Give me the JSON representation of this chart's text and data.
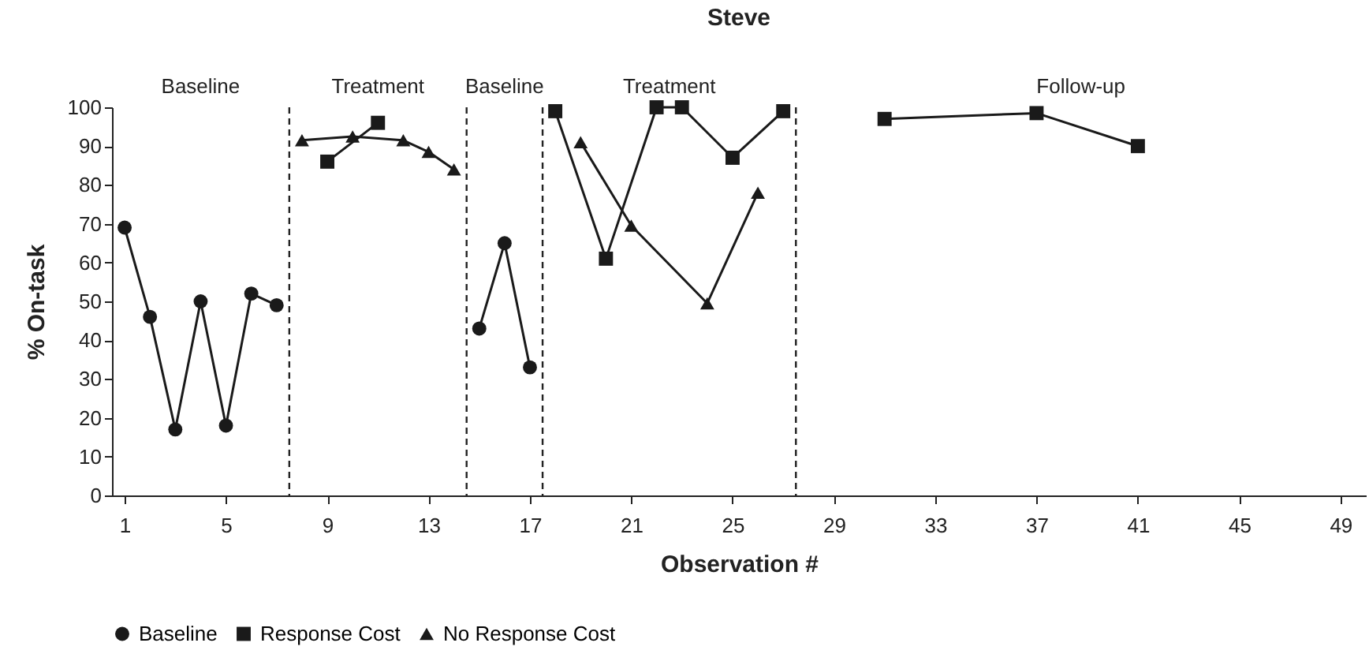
{
  "chart_data": {
    "type": "line",
    "title": "Steve",
    "xlabel": "Observation #",
    "ylabel": "% On-task",
    "xlim": [
      0.5,
      50
    ],
    "xticks": [
      1,
      5,
      9,
      13,
      17,
      21,
      25,
      29,
      33,
      37,
      41,
      45,
      49
    ],
    "ylim": [
      0,
      100
    ],
    "yticks": [
      0,
      10,
      20,
      30,
      40,
      50,
      60,
      70,
      80,
      90,
      100
    ],
    "grid": false,
    "legend": "bottom",
    "line_style": "solid",
    "series": [
      {
        "name": "Baseline",
        "color": "#1a1a1a",
        "marker": "circle",
        "x": [
          1,
          2,
          3,
          4,
          5,
          6,
          7,
          11,
          15,
          16,
          17
        ],
        "values": [
          69,
          46,
          17,
          50,
          18,
          52,
          49,
          null,
          43,
          65,
          33
        ]
      },
      {
        "name": "Response Cost",
        "color": "#1a1a1a",
        "marker": "square",
        "x": [
          9,
          11,
          14,
          18,
          20,
          22,
          23,
          25,
          27,
          29,
          31,
          37,
          41
        ],
        "values": [
          86,
          96,
          null,
          99,
          61,
          100,
          100,
          87,
          99,
          null,
          97,
          98.5,
          90
        ]
      },
      {
        "name": "No Response Cost",
        "color": "#1a1a1a",
        "marker": "triangle",
        "x": [
          8,
          10,
          12,
          13,
          14,
          16,
          19,
          21,
          24,
          26
        ],
        "values": [
          91.5,
          92.5,
          91.5,
          88.5,
          84,
          null,
          91,
          69.5,
          49.5,
          78
        ]
      }
    ],
    "ref_lines": [
      {
        "axis": "x",
        "value": 7.5,
        "line_style": "dashed"
      },
      {
        "axis": "x",
        "value": 14.5,
        "line_style": "dashed"
      },
      {
        "axis": "x",
        "value": 17.5,
        "line_style": "dashed"
      },
      {
        "axis": "x",
        "value": 27.5,
        "line_style": "dashed"
      }
    ],
    "annotations": [
      "Baseline",
      "Treatment",
      "Baseline",
      "Treatment",
      "Follow-up"
    ]
  }
}
